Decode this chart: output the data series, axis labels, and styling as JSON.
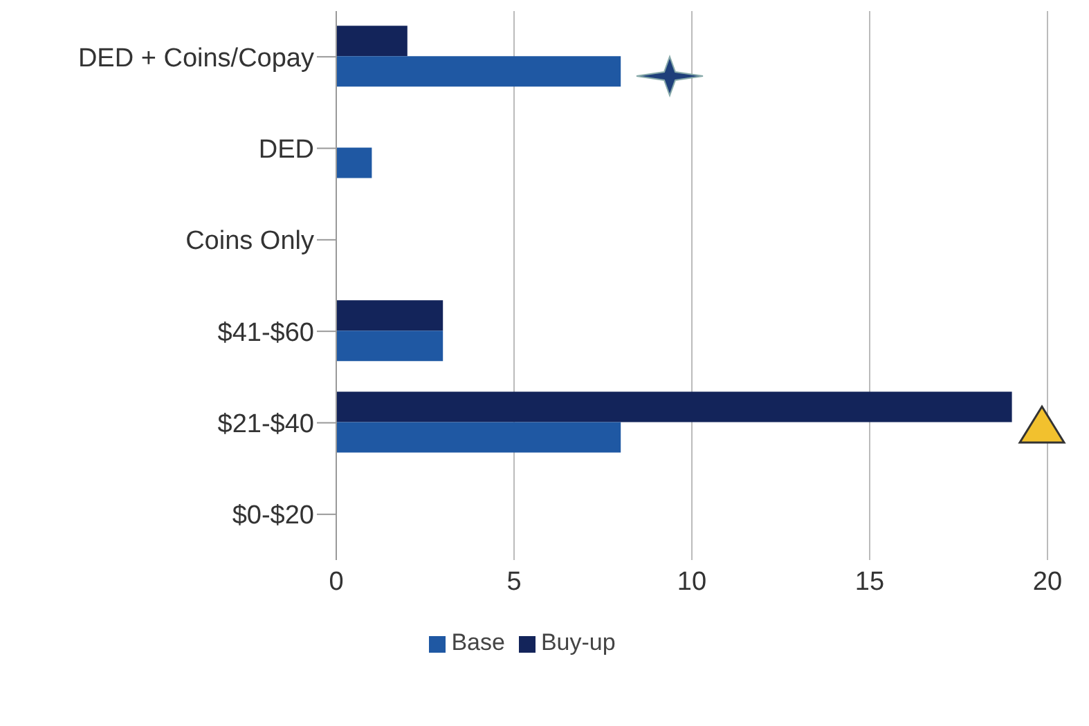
{
  "chart_data": {
    "type": "bar",
    "orientation": "horizontal",
    "categories": [
      "DED + Coins/Copay",
      "DED",
      "Coins Only",
      "$41-$60",
      "$21-$40",
      "$0-$20"
    ],
    "series": [
      {
        "name": "Buy-up",
        "color": "#13245a",
        "values": [
          2,
          0,
          0,
          3,
          19,
          0
        ]
      },
      {
        "name": "Base",
        "color": "#1f58a3",
        "values": [
          8,
          1,
          0,
          3,
          8,
          0
        ]
      }
    ],
    "xlim": [
      0,
      20
    ],
    "xticks": [
      0,
      5,
      10,
      15,
      20
    ],
    "grid": "x",
    "legend": "bottom"
  }
}
